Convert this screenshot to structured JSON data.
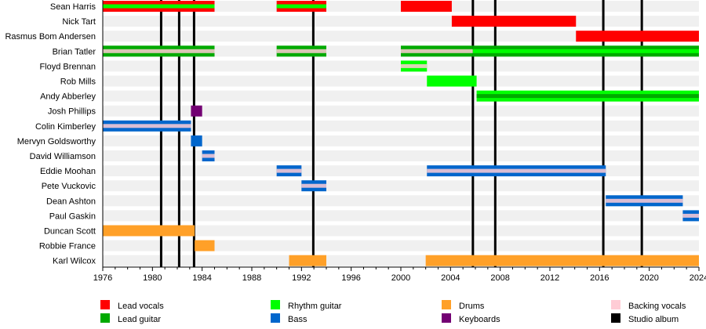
{
  "chart_data": {
    "type": "timeline",
    "xlim": [
      1976,
      2024
    ],
    "x_ticks": [
      1976,
      1980,
      1984,
      1988,
      1992,
      1996,
      2000,
      2004,
      2008,
      2012,
      2016,
      2020,
      2024
    ],
    "roles": {
      "lead_vocals": {
        "label": "Lead vocals",
        "color": "#ff0000"
      },
      "lead_guitar": {
        "label": "Lead guitar",
        "color": "#00aa00"
      },
      "rhythm_guitar": {
        "label": "Rhythm guitar",
        "color": "#00ff00"
      },
      "bass": {
        "label": "Bass",
        "color": "#0066cc"
      },
      "drums": {
        "label": "Drums",
        "color": "#ffa028"
      },
      "keyboards": {
        "label": "Keyboards",
        "color": "#730073"
      },
      "backing_vocals": {
        "label": "Backing vocals",
        "color": "#ffccd5"
      },
      "studio_album": {
        "label": "Studio album",
        "color": "#000000"
      }
    },
    "legend_order": [
      "lead_vocals",
      "lead_guitar",
      "rhythm_guitar",
      "bass",
      "drums",
      "keyboards",
      "backing_vocals",
      "studio_album"
    ],
    "albums": [
      1980.7,
      1982.15,
      1983.35,
      1992.95,
      2005.8,
      2007.6,
      2016.3,
      2019.4
    ],
    "members": [
      {
        "name": "Sean Harris",
        "periods": [
          {
            "start": 1976,
            "end": 1985,
            "role": "lead_vocals",
            "stripe": "rhythm_guitar"
          },
          {
            "start": 1990,
            "end": 1994,
            "role": "lead_vocals",
            "stripe": "rhythm_guitar"
          },
          {
            "start": 2000,
            "end": 2004.1,
            "role": "lead_vocals"
          }
        ]
      },
      {
        "name": "Nick Tart",
        "periods": [
          {
            "start": 2004.1,
            "end": 2014.1,
            "role": "lead_vocals"
          }
        ]
      },
      {
        "name": "Rasmus Bom Andersen",
        "periods": [
          {
            "start": 2014.1,
            "end": 2024,
            "role": "lead_vocals"
          }
        ]
      },
      {
        "name": "Brian Tatler",
        "periods": [
          {
            "start": 1976,
            "end": 1985,
            "role": "lead_guitar",
            "stripe": "backing_vocals"
          },
          {
            "start": 1990,
            "end": 1994,
            "role": "lead_guitar",
            "stripe": "backing_vocals"
          },
          {
            "start": 2000,
            "end": 2005.8,
            "role": "lead_guitar",
            "stripe": "backing_vocals"
          },
          {
            "start": 2005.8,
            "end": 2024,
            "role": "lead_guitar",
            "stripe": "rhythm_guitar"
          }
        ]
      },
      {
        "name": "Floyd Brennan",
        "periods": [
          {
            "start": 2000,
            "end": 2002.1,
            "role": "rhythm_guitar",
            "stripe": "backing_vocals"
          }
        ]
      },
      {
        "name": "Rob Mills",
        "periods": [
          {
            "start": 2002.1,
            "end": 2006.1,
            "role": "rhythm_guitar"
          }
        ]
      },
      {
        "name": "Andy Abberley",
        "periods": [
          {
            "start": 2006.1,
            "end": 2024,
            "role": "rhythm_guitar",
            "stripe": "lead_guitar"
          }
        ]
      },
      {
        "name": "Josh Phillips",
        "periods": [
          {
            "start": 1983.1,
            "end": 1984,
            "role": "keyboards"
          }
        ]
      },
      {
        "name": "Colin Kimberley",
        "periods": [
          {
            "start": 1976,
            "end": 1983.1,
            "role": "bass",
            "stripe": "backing_vocals"
          }
        ]
      },
      {
        "name": "Mervyn Goldsworthy",
        "periods": [
          {
            "start": 1983.1,
            "end": 1984,
            "role": "bass"
          }
        ]
      },
      {
        "name": "David Williamson",
        "periods": [
          {
            "start": 1984,
            "end": 1985,
            "role": "bass",
            "stripe": "backing_vocals"
          }
        ]
      },
      {
        "name": "Eddie Moohan",
        "periods": [
          {
            "start": 1990,
            "end": 1992,
            "role": "bass",
            "stripe": "backing_vocals"
          },
          {
            "start": 2002.1,
            "end": 2016.5,
            "role": "bass",
            "stripe": "backing_vocals"
          }
        ]
      },
      {
        "name": "Pete Vuckovic",
        "periods": [
          {
            "start": 1992,
            "end": 1994,
            "role": "bass",
            "stripe": "backing_vocals"
          }
        ]
      },
      {
        "name": "Dean Ashton",
        "periods": [
          {
            "start": 2016.5,
            "end": 2022.7,
            "role": "bass",
            "stripe": "backing_vocals"
          }
        ]
      },
      {
        "name": "Paul Gaskin",
        "periods": [
          {
            "start": 2022.7,
            "end": 2024,
            "role": "bass",
            "stripe": "backing_vocals"
          }
        ]
      },
      {
        "name": "Duncan Scott",
        "periods": [
          {
            "start": 1976,
            "end": 1983.4,
            "role": "drums"
          }
        ]
      },
      {
        "name": "Robbie France",
        "periods": [
          {
            "start": 1983.4,
            "end": 1985,
            "role": "drums"
          }
        ]
      },
      {
        "name": "Karl Wilcox",
        "periods": [
          {
            "start": 1991,
            "end": 1994,
            "role": "drums"
          },
          {
            "start": 2002,
            "end": 2024,
            "role": "drums"
          }
        ]
      }
    ]
  }
}
